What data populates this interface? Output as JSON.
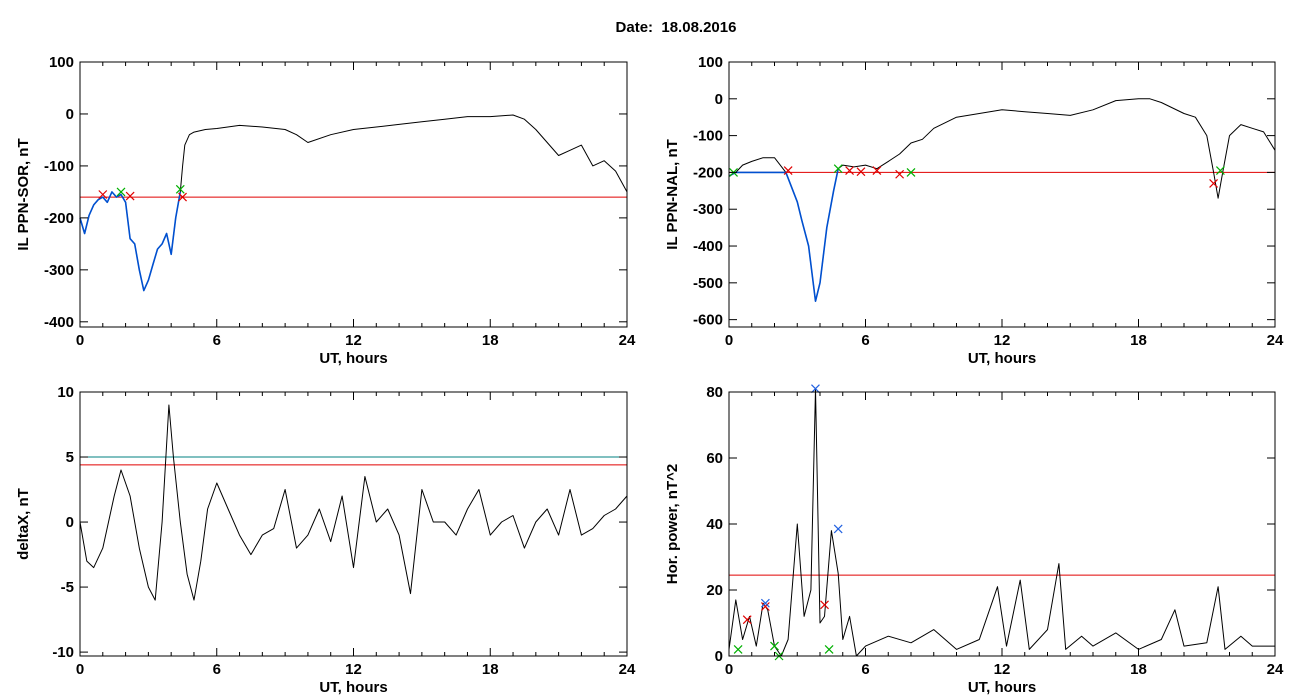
{
  "page": {
    "title": "Date:  18.08.2016"
  },
  "colors": {
    "background": "#ffffff",
    "axis": "#000000",
    "curve": "#000000",
    "highlight": "#0050d0",
    "threshold_red": "#e00000",
    "threshold_teal": "#008080",
    "marker_red": "#e00000",
    "marker_green": "#00b000",
    "marker_blue": "#2060e0"
  },
  "chart_data": [
    {
      "type": "line",
      "title": "",
      "xlabel": "UT, hours",
      "ylabel": "IL PPN-SOR, nT",
      "xlim": [
        0,
        24
      ],
      "ylim": [
        -410,
        100
      ],
      "xticks": [
        0,
        6,
        12,
        18,
        24
      ],
      "yticks": [
        100,
        0,
        -100,
        -200,
        -300,
        -400
      ],
      "threshold_lines": [
        {
          "y": -160,
          "color": "red"
        }
      ],
      "series": [
        {
          "role": "main",
          "color": "black",
          "x": [
            0,
            0.2,
            0.4,
            0.6,
            0.8,
            1.0,
            1.2,
            1.4,
            1.6,
            1.8,
            2.0,
            2.2,
            2.4,
            2.6,
            2.8,
            3.0,
            3.2,
            3.4,
            3.6,
            3.8,
            4.0,
            4.2,
            4.4,
            4.5,
            4.6,
            4.8,
            5.0,
            5.5,
            6.0,
            7.0,
            8.0,
            9.0,
            9.5,
            10.0,
            11.0,
            12.0,
            13.0,
            14.0,
            15.0,
            16.0,
            17.0,
            18.0,
            19.0,
            19.5,
            20.0,
            20.5,
            21.0,
            21.5,
            22.0,
            22.5,
            23.0,
            23.5,
            24.0
          ],
          "y": [
            -200,
            -230,
            -195,
            -175,
            -165,
            -160,
            -170,
            -150,
            -160,
            -155,
            -170,
            -240,
            -250,
            -300,
            -340,
            -320,
            -290,
            -260,
            -250,
            -230,
            -270,
            -200,
            -150,
            -100,
            -60,
            -40,
            -35,
            -30,
            -28,
            -22,
            -25,
            -30,
            -40,
            -55,
            -40,
            -30,
            -25,
            -20,
            -15,
            -10,
            -5,
            -5,
            -2,
            -10,
            -30,
            -55,
            -80,
            -70,
            -60,
            -100,
            -90,
            -110,
            -150
          ]
        },
        {
          "role": "highlight",
          "color": "blue",
          "x": [
            0,
            0.2,
            0.4,
            0.6,
            0.8,
            1.0,
            1.2,
            1.4,
            1.6,
            1.8,
            2.0,
            2.2,
            2.4,
            2.6,
            2.8,
            3.0,
            3.2,
            3.4,
            3.6,
            3.8,
            4.0,
            4.2,
            4.4
          ],
          "y": [
            -200,
            -230,
            -195,
            -175,
            -165,
            -160,
            -170,
            -150,
            -160,
            -155,
            -170,
            -240,
            -250,
            -300,
            -340,
            -320,
            -290,
            -260,
            -250,
            -230,
            -270,
            -200,
            -150
          ]
        }
      ],
      "markers": [
        {
          "x": 1.0,
          "y": -155,
          "color": "red"
        },
        {
          "x": 1.8,
          "y": -150,
          "color": "green"
        },
        {
          "x": 2.2,
          "y": -158,
          "color": "red"
        },
        {
          "x": 4.4,
          "y": -145,
          "color": "green"
        },
        {
          "x": 4.5,
          "y": -160,
          "color": "red"
        }
      ]
    },
    {
      "type": "line",
      "title": "",
      "xlabel": "UT, hours",
      "ylabel": "IL PPN-NAL, nT",
      "xlim": [
        0,
        24
      ],
      "ylim": [
        -620,
        100
      ],
      "xticks": [
        0,
        6,
        12,
        18,
        24
      ],
      "yticks": [
        100,
        0,
        -100,
        -200,
        -300,
        -400,
        -500,
        -600
      ],
      "threshold_lines": [
        {
          "y": -200,
          "color": "red"
        }
      ],
      "series": [
        {
          "role": "main",
          "color": "black",
          "x": [
            0,
            0.3,
            0.6,
            1.0,
            1.5,
            2.0,
            2.5,
            3.0,
            3.2,
            3.5,
            3.8,
            4.0,
            4.3,
            4.6,
            4.8,
            5.0,
            5.5,
            6.0,
            6.5,
            7.0,
            7.5,
            8.0,
            8.5,
            9.0,
            10.0,
            11.0,
            12.0,
            13.0,
            14.0,
            15.0,
            16.0,
            17.0,
            18.0,
            18.5,
            19.0,
            20.0,
            20.5,
            21.0,
            21.3,
            21.5,
            21.7,
            22.0,
            22.5,
            23.0,
            23.5,
            24.0
          ],
          "y": [
            -210,
            -200,
            -180,
            -170,
            -160,
            -160,
            -200,
            -280,
            -330,
            -400,
            -550,
            -500,
            -350,
            -250,
            -190,
            -180,
            -185,
            -180,
            -190,
            -170,
            -150,
            -120,
            -110,
            -80,
            -50,
            -40,
            -30,
            -35,
            -40,
            -45,
            -30,
            -5,
            0,
            0,
            -10,
            -40,
            -50,
            -100,
            -200,
            -270,
            -200,
            -100,
            -70,
            -80,
            -90,
            -140
          ]
        },
        {
          "role": "highlight",
          "color": "blue",
          "x": [
            0,
            0.3,
            2.5,
            3.0,
            3.2,
            3.5,
            3.8,
            4.0,
            4.3,
            4.6,
            4.8
          ],
          "y": [
            -210,
            -200,
            -200,
            -280,
            -330,
            -400,
            -550,
            -500,
            -350,
            -250,
            -190
          ]
        }
      ],
      "markers": [
        {
          "x": 0.2,
          "y": -200,
          "color": "green"
        },
        {
          "x": 2.6,
          "y": -195,
          "color": "red"
        },
        {
          "x": 4.8,
          "y": -190,
          "color": "green"
        },
        {
          "x": 5.3,
          "y": -195,
          "color": "red"
        },
        {
          "x": 5.8,
          "y": -198,
          "color": "red"
        },
        {
          "x": 6.5,
          "y": -195,
          "color": "red"
        },
        {
          "x": 7.5,
          "y": -205,
          "color": "red"
        },
        {
          "x": 8.0,
          "y": -200,
          "color": "green"
        },
        {
          "x": 21.3,
          "y": -230,
          "color": "red"
        },
        {
          "x": 21.6,
          "y": -195,
          "color": "green"
        }
      ]
    },
    {
      "type": "line",
      "title": "",
      "xlabel": "UT, hours",
      "ylabel": "deltaX, nT",
      "xlim": [
        0,
        24
      ],
      "ylim": [
        -10.3,
        10
      ],
      "xticks": [
        0,
        6,
        12,
        18,
        24
      ],
      "yticks": [
        10,
        5,
        0,
        -5,
        -10
      ],
      "threshold_lines": [
        {
          "y": 5.0,
          "color": "teal"
        },
        {
          "y": 4.4,
          "color": "red"
        }
      ],
      "series": [
        {
          "role": "main",
          "color": "black",
          "x": [
            0,
            0.3,
            0.6,
            1.0,
            1.5,
            1.8,
            2.2,
            2.6,
            3.0,
            3.3,
            3.6,
            3.9,
            4.1,
            4.4,
            4.7,
            5.0,
            5.3,
            5.6,
            6.0,
            6.5,
            7.0,
            7.5,
            8.0,
            8.5,
            9.0,
            9.5,
            10.0,
            10.5,
            11.0,
            11.5,
            12.0,
            12.5,
            13.0,
            13.5,
            14.0,
            14.5,
            15.0,
            15.5,
            16.0,
            16.5,
            17.0,
            17.5,
            18.0,
            18.5,
            19.0,
            19.5,
            20.0,
            20.5,
            21.0,
            21.5,
            22.0,
            22.5,
            23.0,
            23.5,
            24.0
          ],
          "y": [
            0,
            -3,
            -3.5,
            -2,
            2,
            4,
            2,
            -2,
            -5,
            -6,
            0,
            9,
            5,
            0,
            -4,
            -6,
            -3,
            1,
            3,
            1,
            -1,
            -2.5,
            -1,
            -0.5,
            2.5,
            -2,
            -1,
            1,
            -1.5,
            2,
            -3.5,
            3.5,
            0,
            1,
            -1,
            -5.5,
            2.5,
            0,
            0,
            -1,
            1,
            2.5,
            -1,
            0,
            0.5,
            -2,
            0,
            1,
            -1,
            2.5,
            -1,
            -0.5,
            0.5,
            1,
            2
          ]
        }
      ],
      "markers": []
    },
    {
      "type": "line",
      "title": "",
      "xlabel": "UT, hours",
      "ylabel": "Hor. power, nT^2",
      "xlim": [
        0,
        24
      ],
      "ylim": [
        0,
        80
      ],
      "xticks": [
        0,
        6,
        12,
        18,
        24
      ],
      "yticks": [
        0,
        20,
        40,
        60,
        80
      ],
      "threshold_lines": [
        {
          "y": 24.5,
          "color": "red"
        }
      ],
      "series": [
        {
          "role": "main",
          "color": "black",
          "x": [
            0,
            0.3,
            0.6,
            0.9,
            1.2,
            1.5,
            1.7,
            2.0,
            2.3,
            2.6,
            3.0,
            3.3,
            3.6,
            3.8,
            4.0,
            4.2,
            4.5,
            4.8,
            5.0,
            5.3,
            5.6,
            6.0,
            7.0,
            8.0,
            9.0,
            10.0,
            11.0,
            11.8,
            12.2,
            12.8,
            13.2,
            14.0,
            14.5,
            14.8,
            15.5,
            16.0,
            17.0,
            18.0,
            19.0,
            19.6,
            20.0,
            21.0,
            21.5,
            21.8,
            22.5,
            23.0,
            24.0
          ],
          "y": [
            2,
            17,
            5,
            12,
            3,
            16,
            14,
            3,
            0,
            5,
            40,
            12,
            20,
            81,
            10,
            12,
            38,
            25,
            5,
            12,
            0,
            3,
            6,
            4,
            8,
            2,
            5,
            21,
            3,
            23,
            2,
            8,
            28,
            2,
            6,
            3,
            7,
            2,
            5,
            14,
            3,
            4,
            21,
            2,
            6,
            3,
            3
          ]
        }
      ],
      "markers": [
        {
          "x": 0.4,
          "y": 2,
          "color": "green"
        },
        {
          "x": 0.8,
          "y": 11,
          "color": "red"
        },
        {
          "x": 1.6,
          "y": 15,
          "color": "red"
        },
        {
          "x": 1.6,
          "y": 16,
          "color": "blue"
        },
        {
          "x": 2.0,
          "y": 3,
          "color": "green"
        },
        {
          "x": 2.2,
          "y": 0,
          "color": "green"
        },
        {
          "x": 3.8,
          "y": 81,
          "color": "blue"
        },
        {
          "x": 4.2,
          "y": 15.5,
          "color": "red"
        },
        {
          "x": 4.4,
          "y": 2,
          "color": "green"
        },
        {
          "x": 4.8,
          "y": 38.5,
          "color": "blue"
        }
      ]
    }
  ]
}
